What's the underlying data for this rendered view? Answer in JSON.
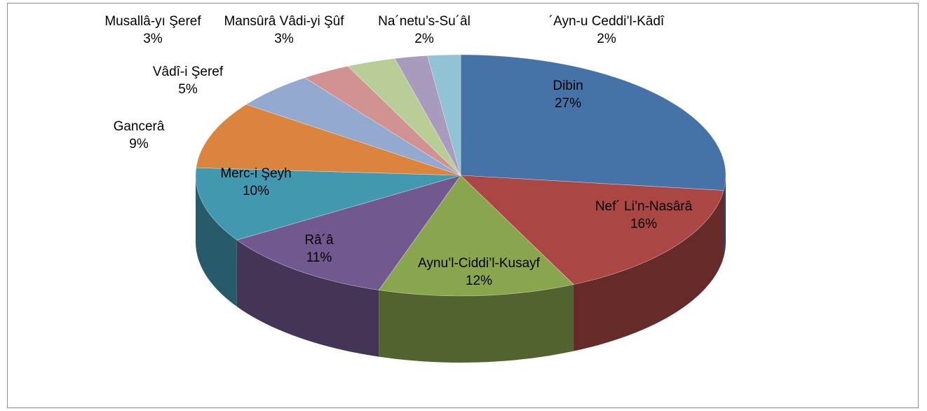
{
  "chart_data": {
    "type": "pie3d",
    "categories": [
      "Dibin",
      "Nef´ Li’n-Nasârâ",
      "Aynu’l-Ciddi’l-Kusayf",
      "Râ´â",
      "Merc-i Şeyh",
      "Gancerâ",
      "Vâdî-i Şeref",
      "Musallâ-yı Şeref",
      "Mansûrâ Vâdi-yi Şûf",
      "Na´netu’s-Su´âl",
      "´Ayn-u Ceddi’l-Kādî"
    ],
    "values": [
      27,
      16,
      12,
      11,
      10,
      9,
      5,
      3,
      3,
      2,
      2
    ],
    "value_labels": [
      "27%",
      "16%",
      "12%",
      "11%",
      "10%",
      "9%",
      "5%",
      "3%",
      "3%",
      "2%",
      "2%"
    ],
    "colors": [
      "#4572a7",
      "#aa4643",
      "#89a54e",
      "#71588f",
      "#4198af",
      "#db843d",
      "#93a9cf",
      "#d19392",
      "#b9cd96",
      "#a99bbd",
      "#91c3d5"
    ]
  }
}
